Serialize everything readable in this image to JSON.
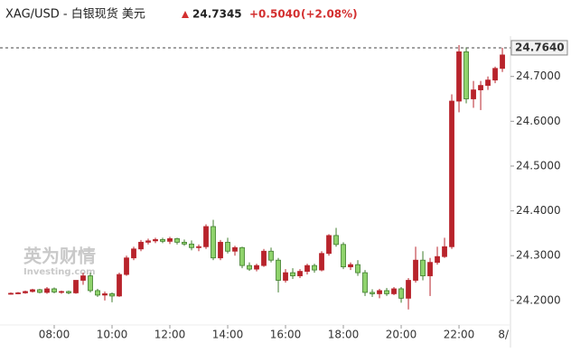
{
  "chart_data": {
    "type": "candlestick",
    "title": "XAG/USD - 白银现货 美元",
    "price": "24.7345",
    "change": "+0.5040",
    "change_pct": "(+2.08%)",
    "watermark": "英为财情",
    "watermark_sub": "Investing.com",
    "up_color": "#b8232b",
    "down_color": "#8fd36c",
    "last_price": {
      "value": 24.764,
      "label": "24.7640"
    },
    "xlim": [
      6.125,
      23.78
    ],
    "ylim": [
      24.105,
      24.78
    ],
    "xticks": [
      {
        "value": 8,
        "label": "08:00"
      },
      {
        "value": 10,
        "label": "10:00"
      },
      {
        "value": 12,
        "label": "12:00"
      },
      {
        "value": 14,
        "label": "14:00"
      },
      {
        "value": 16,
        "label": "16:00"
      },
      {
        "value": 18,
        "label": "18:00"
      },
      {
        "value": 20,
        "label": "20:00"
      },
      {
        "value": 22,
        "label": "22:00"
      },
      {
        "value": 24,
        "label": "8/"
      }
    ],
    "yticks": [
      {
        "value": 24.2,
        "label": "24.2000"
      },
      {
        "value": 24.3,
        "label": "24.3000"
      },
      {
        "value": 24.4,
        "label": "24.4000"
      },
      {
        "value": 24.5,
        "label": "24.5000"
      },
      {
        "value": 24.6,
        "label": "24.6000"
      },
      {
        "value": 24.7,
        "label": "24.7000"
      }
    ],
    "x": [
      6.5,
      6.75,
      7,
      7.25,
      7.5,
      7.75,
      8,
      8.25,
      8.5,
      8.75,
      9,
      9.25,
      9.5,
      9.75,
      10,
      10.25,
      10.5,
      10.75,
      11,
      11.25,
      11.5,
      11.75,
      12,
      12.25,
      12.5,
      12.75,
      13,
      13.25,
      13.5,
      13.75,
      14,
      14.25,
      14.5,
      14.75,
      15,
      15.25,
      15.5,
      15.75,
      16,
      16.25,
      16.5,
      16.75,
      17,
      17.25,
      17.5,
      17.75,
      18,
      18.25,
      18.5,
      18.75,
      19,
      19.25,
      19.5,
      19.75,
      20,
      20.25,
      20.5,
      20.75,
      21,
      21.25,
      21.5,
      21.75,
      22,
      22.25,
      22.5,
      22.75,
      23,
      23.25,
      23.5
    ],
    "open": [
      24.215,
      24.216,
      24.217,
      24.22,
      24.224,
      24.218,
      24.226,
      24.219,
      24.22,
      24.217,
      24.245,
      24.255,
      24.222,
      24.212,
      24.215,
      24.21,
      24.258,
      24.295,
      24.315,
      24.33,
      24.333,
      24.336,
      24.332,
      24.338,
      24.33,
      24.326,
      24.318,
      24.32,
      24.365,
      24.295,
      24.33,
      24.31,
      24.318,
      24.278,
      24.27,
      24.278,
      24.31,
      24.29,
      24.245,
      24.262,
      24.255,
      24.265,
      24.278,
      24.268,
      24.305,
      24.345,
      24.325,
      24.275,
      24.28,
      24.262,
      24.218,
      24.215,
      24.222,
      24.215,
      24.226,
      24.205,
      24.245,
      24.29,
      24.255,
      24.285,
      24.298,
      24.32,
      24.645,
      24.755,
      24.65,
      24.67,
      24.68,
      24.692,
      24.718
    ],
    "high": [
      24.218,
      24.219,
      24.222,
      24.226,
      24.226,
      24.23,
      24.229,
      24.222,
      24.222,
      24.244,
      24.262,
      24.262,
      24.226,
      24.22,
      24.218,
      24.262,
      24.3,
      24.32,
      24.335,
      24.338,
      24.34,
      24.34,
      24.342,
      24.34,
      24.336,
      24.334,
      24.325,
      24.37,
      24.38,
      24.335,
      24.34,
      24.322,
      24.32,
      24.285,
      24.282,
      24.315,
      24.318,
      24.295,
      24.27,
      24.272,
      24.27,
      24.282,
      24.282,
      24.31,
      24.348,
      24.362,
      24.33,
      24.285,
      24.29,
      24.268,
      24.225,
      24.226,
      24.228,
      24.23,
      24.23,
      24.25,
      24.32,
      24.31,
      24.295,
      24.32,
      24.34,
      24.66,
      24.77,
      24.765,
      24.69,
      24.69,
      24.7,
      24.722,
      24.764
    ],
    "low": [
      24.213,
      24.214,
      24.215,
      24.218,
      24.216,
      24.215,
      24.216,
      24.215,
      24.214,
      24.215,
      24.235,
      24.218,
      24.208,
      24.2,
      24.196,
      24.208,
      24.255,
      24.29,
      24.31,
      24.325,
      24.328,
      24.328,
      24.326,
      24.325,
      24.322,
      24.312,
      24.31,
      24.315,
      24.29,
      24.29,
      24.305,
      24.3,
      24.272,
      24.266,
      24.265,
      24.275,
      24.285,
      24.218,
      24.24,
      24.248,
      24.25,
      24.258,
      24.262,
      24.265,
      24.3,
      24.32,
      24.27,
      24.268,
      24.255,
      24.21,
      24.208,
      24.205,
      24.21,
      24.212,
      24.195,
      24.18,
      24.24,
      24.245,
      24.21,
      24.28,
      24.295,
      24.315,
      24.62,
      24.64,
      24.63,
      24.625,
      24.67,
      24.685,
      24.71
    ],
    "close": [
      24.216,
      24.217,
      24.22,
      24.224,
      24.218,
      24.226,
      24.219,
      24.22,
      24.217,
      24.245,
      24.255,
      24.222,
      24.212,
      24.215,
      24.21,
      24.258,
      24.295,
      24.315,
      24.33,
      24.333,
      24.336,
      24.332,
      24.338,
      24.33,
      24.326,
      24.318,
      24.32,
      24.365,
      24.295,
      24.33,
      24.31,
      24.318,
      24.278,
      24.27,
      24.278,
      24.31,
      24.29,
      24.245,
      24.262,
      24.255,
      24.265,
      24.278,
      24.268,
      24.305,
      24.345,
      24.325,
      24.275,
      24.28,
      24.262,
      24.218,
      24.215,
      24.222,
      24.215,
      24.226,
      24.205,
      24.245,
      24.29,
      24.255,
      24.285,
      24.298,
      24.32,
      24.645,
      24.755,
      24.65,
      24.67,
      24.68,
      24.692,
      24.718,
      24.748
    ]
  }
}
